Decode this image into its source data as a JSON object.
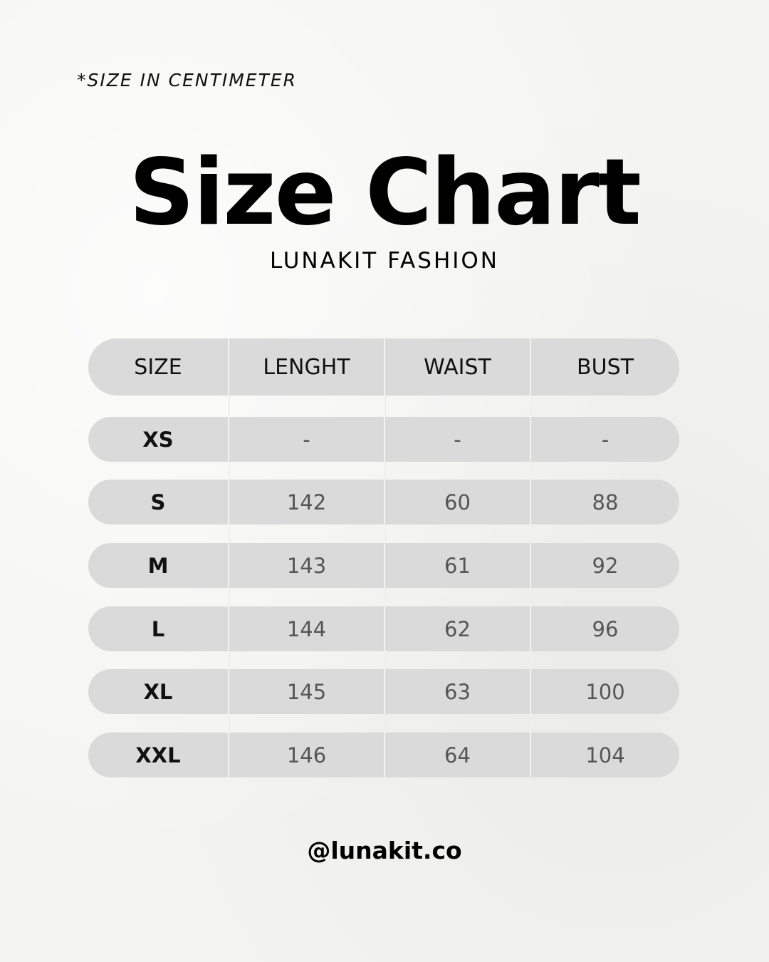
{
  "note": "*SIZE IN CENTIMETER",
  "title": "Size Chart",
  "subtitle": "LUNAKIT FASHION",
  "table": {
    "headers": [
      "SIZE",
      "LENGHT",
      "WAIST",
      "BUST"
    ],
    "rows": [
      [
        "XS",
        "-",
        "-",
        "-"
      ],
      [
        "S",
        "142",
        "60",
        "88"
      ],
      [
        "M",
        "143",
        "61",
        "92"
      ],
      [
        "L",
        "144",
        "62",
        "96"
      ],
      [
        "XL",
        "145",
        "63",
        "100"
      ],
      [
        "XXL",
        "146",
        "64",
        "104"
      ]
    ]
  },
  "handle": "@lunakit.co",
  "colors": {
    "row_bg": "#dadada",
    "background": "#f4f4f2"
  }
}
